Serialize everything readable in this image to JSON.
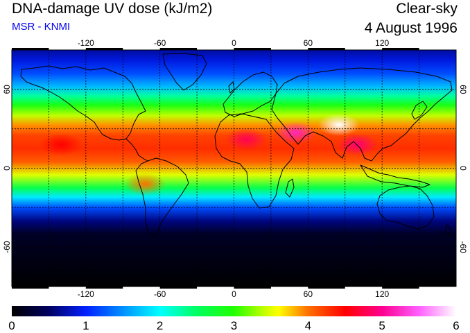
{
  "header": {
    "title": "DNA-damage UV dose (kJ/m2)",
    "source": "MSR - KNMI",
    "sky_condition": "Clear-sky",
    "date": "4 August 1996"
  },
  "colors": {
    "source_text": "#0000ee",
    "title_text": "#000000"
  },
  "map": {
    "lon_range": [
      -180,
      180
    ],
    "lat_range": [
      -90,
      90
    ],
    "gridline_lons": [
      -150,
      -120,
      -90,
      -60,
      -30,
      0,
      30,
      60,
      90,
      120,
      150
    ],
    "gridline_lats": [
      -60,
      -30,
      0,
      30,
      60
    ],
    "lon_tick_labels": [
      {
        "value": -120,
        "text": "-120"
      },
      {
        "value": -60,
        "text": "-60"
      },
      {
        "value": 0,
        "text": "0"
      },
      {
        "value": 60,
        "text": "60"
      },
      {
        "value": 120,
        "text": "120"
      }
    ],
    "lat_tick_labels": [
      {
        "value": 60,
        "text": "60"
      },
      {
        "value": 0,
        "text": "0"
      },
      {
        "value": -60,
        "text": "-60"
      }
    ]
  },
  "colorbar": {
    "range": [
      0,
      6
    ],
    "tick_labels": [
      "0",
      "1",
      "2",
      "3",
      "4",
      "5",
      "6"
    ],
    "stops": [
      {
        "value": 0,
        "color": "#000000"
      },
      {
        "value": 0.5,
        "color": "#000060"
      },
      {
        "value": 1,
        "color": "#0020ff"
      },
      {
        "value": 1.5,
        "color": "#0090ff"
      },
      {
        "value": 2,
        "color": "#00ffff"
      },
      {
        "value": 2.5,
        "color": "#00ff60"
      },
      {
        "value": 3,
        "color": "#20ff00"
      },
      {
        "value": 3.4,
        "color": "#c0ff00"
      },
      {
        "value": 3.6,
        "color": "#ffff00"
      },
      {
        "value": 4,
        "color": "#ff7000"
      },
      {
        "value": 4.5,
        "color": "#ff0000"
      },
      {
        "value": 5,
        "color": "#ff0090"
      },
      {
        "value": 5.5,
        "color": "#ff60ff"
      },
      {
        "value": 6,
        "color": "#ffffff"
      }
    ]
  },
  "dose_profile": [
    {
      "lat": 90,
      "value": 0.7
    },
    {
      "lat": 82,
      "value": 0.9
    },
    {
      "lat": 72,
      "value": 1.2
    },
    {
      "lat": 62,
      "value": 1.7
    },
    {
      "lat": 55,
      "value": 2.3
    },
    {
      "lat": 48,
      "value": 2.9
    },
    {
      "lat": 40,
      "value": 3.4
    },
    {
      "lat": 33,
      "value": 3.9
    },
    {
      "lat": 25,
      "value": 4.2
    },
    {
      "lat": 15,
      "value": 4.3
    },
    {
      "lat": 5,
      "value": 4.1
    },
    {
      "lat": -5,
      "value": 3.5
    },
    {
      "lat": -15,
      "value": 2.6
    },
    {
      "lat": -22,
      "value": 1.9
    },
    {
      "lat": -30,
      "value": 1.2
    },
    {
      "lat": -40,
      "value": 0.6
    },
    {
      "lat": -50,
      "value": 0.2
    },
    {
      "lat": -90,
      "value": 0.0
    }
  ],
  "dose_hotspots": [
    {
      "region": "tibetan-plateau",
      "lon": 85,
      "lat": 33,
      "value": 6.0
    },
    {
      "region": "middle-east",
      "lon": 50,
      "lat": 27,
      "value": 5.2
    },
    {
      "region": "sahara",
      "lon": 10,
      "lat": 22,
      "value": 4.8
    },
    {
      "region": "indochina",
      "lon": 100,
      "lat": 18,
      "value": 4.9
    },
    {
      "region": "andes",
      "lon": -72,
      "lat": -12,
      "value": 4.0
    },
    {
      "region": "pacific-east",
      "lon": -140,
      "lat": 18,
      "value": 4.5
    }
  ]
}
